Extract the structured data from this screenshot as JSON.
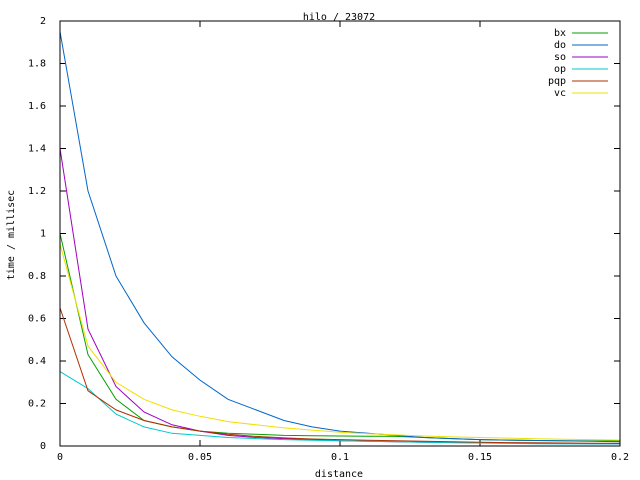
{
  "chart_data": {
    "type": "line",
    "title": "hilo / 23072",
    "xlabel": "distance",
    "ylabel": "time / millisec",
    "xlim": [
      0,
      0.2
    ],
    "ylim": [
      0,
      2
    ],
    "x_ticks": [
      "0",
      "0.05",
      "0.1",
      "0.15",
      "0.2"
    ],
    "y_ticks": [
      "0",
      "0.2",
      "0.4",
      "0.6",
      "0.8",
      "1",
      "1.2",
      "1.4",
      "1.6",
      "1.8",
      "2"
    ],
    "grid": false,
    "legend": "top-right",
    "x": [
      0,
      0.01,
      0.02,
      0.03,
      0.04,
      0.05,
      0.06,
      0.07,
      0.08,
      0.09,
      0.1,
      0.11,
      0.12,
      0.13,
      0.14,
      0.15,
      0.16,
      0.17,
      0.18,
      0.19,
      0.2
    ],
    "series": [
      {
        "name": "bx",
        "color": "#00a000",
        "values": [
          1.0,
          0.43,
          0.22,
          0.12,
          0.09,
          0.07,
          0.06,
          0.055,
          0.05,
          0.048,
          0.047,
          0.046,
          0.045,
          0.04,
          0.035,
          0.03,
          0.028,
          0.026,
          0.025,
          0.024,
          0.024
        ]
      },
      {
        "name": "do",
        "color": "#0066cc",
        "values": [
          1.95,
          1.2,
          0.8,
          0.58,
          0.42,
          0.31,
          0.22,
          0.17,
          0.12,
          0.09,
          0.07,
          0.06,
          0.05,
          0.04,
          0.035,
          0.03,
          0.028,
          0.026,
          0.024,
          0.022,
          0.02
        ]
      },
      {
        "name": "so",
        "color": "#a000c0",
        "values": [
          1.4,
          0.55,
          0.28,
          0.16,
          0.1,
          0.07,
          0.05,
          0.04,
          0.035,
          0.03,
          0.025,
          0.022,
          0.02,
          0.018,
          0.016,
          0.015,
          0.014,
          0.013,
          0.012,
          0.011,
          0.01
        ]
      },
      {
        "name": "op",
        "color": "#00c8c8",
        "values": [
          0.35,
          0.27,
          0.15,
          0.09,
          0.06,
          0.05,
          0.04,
          0.035,
          0.03,
          0.027,
          0.025,
          0.022,
          0.02,
          0.018,
          0.016,
          0.014,
          0.012,
          0.011,
          0.01,
          0.01,
          0.01
        ]
      },
      {
        "name": "pqp",
        "color": "#b03000",
        "values": [
          0.65,
          0.26,
          0.17,
          0.12,
          0.09,
          0.07,
          0.055,
          0.045,
          0.038,
          0.033,
          0.03,
          0.027,
          0.025,
          0.022,
          0.02,
          0.018,
          0.016,
          0.015,
          0.014,
          0.013,
          0.012
        ]
      },
      {
        "name": "vc",
        "color": "#f0e000",
        "values": [
          0.95,
          0.47,
          0.3,
          0.22,
          0.17,
          0.14,
          0.115,
          0.1,
          0.085,
          0.075,
          0.065,
          0.058,
          0.052,
          0.047,
          0.043,
          0.04,
          0.037,
          0.034,
          0.032,
          0.03,
          0.028
        ]
      }
    ]
  }
}
